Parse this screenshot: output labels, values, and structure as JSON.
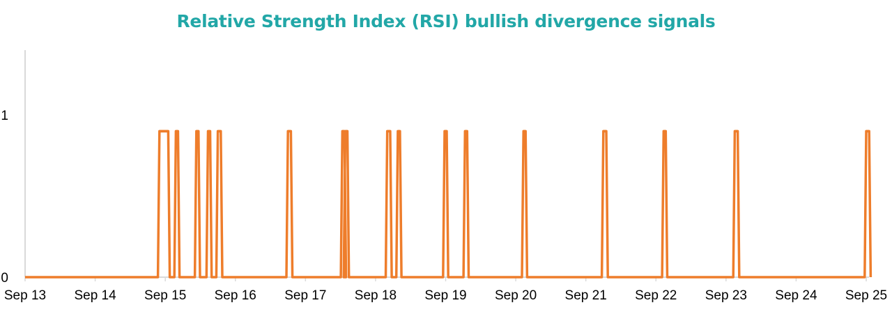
{
  "title": "Relative Strength Index (RSI) bullish divergence signals",
  "colors": {
    "title": "#22A7A7",
    "series": "#EE7D2B",
    "axis": "#D9D9D9",
    "text": "#000000"
  },
  "chart_data": {
    "type": "line",
    "title": "Relative Strength Index (RSI) bullish divergence signals",
    "xlabel": "",
    "ylabel": "",
    "x_tick_labels": [
      "Sep 13",
      "Sep 14",
      "Sep 15",
      "Sep 16",
      "Sep 17",
      "Sep 18",
      "Sep 19",
      "Sep 20",
      "Sep 21",
      "Sep 22",
      "Sep 23",
      "Sep 24",
      "Sep 25"
    ],
    "y_tick_labels": [
      "0",
      "1"
    ],
    "ylim": [
      0,
      1.4
    ],
    "xlim": [
      "Sep 13",
      "Sep 25"
    ],
    "grid": false,
    "legend": "none",
    "series": [
      {
        "signal_level": 0.9,
        "baseline": 0,
        "signals": [
          {
            "start": "Sep 14 22:00",
            "end": "Sep 15 01:00"
          },
          {
            "start": "Sep 15 04:00",
            "end": "Sep 15 04:00"
          },
          {
            "start": "Sep 15 11:00",
            "end": "Sep 15 11:00"
          },
          {
            "start": "Sep 15 15:00",
            "end": "Sep 15 15:00"
          },
          {
            "start": "Sep 15 18:00",
            "end": "Sep 15 19:00"
          },
          {
            "start": "Sep 16 18:00",
            "end": "Sep 16 19:00"
          },
          {
            "start": "Sep 17 13:00",
            "end": "Sep 17 13:00"
          },
          {
            "start": "Sep 17 14:00",
            "end": "Sep 17 14:00"
          },
          {
            "start": "Sep 18 04:00",
            "end": "Sep 18 05:00"
          },
          {
            "start": "Sep 18 08:00",
            "end": "Sep 18 08:00"
          },
          {
            "start": "Sep 19 00:00",
            "end": "Sep 19 00:00"
          },
          {
            "start": "Sep 19 07:00",
            "end": "Sep 19 07:00"
          },
          {
            "start": "Sep 20 03:00",
            "end": "Sep 20 03:00"
          },
          {
            "start": "Sep 21 06:00",
            "end": "Sep 21 07:00"
          },
          {
            "start": "Sep 22 03:00",
            "end": "Sep 22 03:00"
          },
          {
            "start": "Sep 23 03:00",
            "end": "Sep 23 04:00"
          },
          {
            "start": "Sep 25 00:00",
            "end": "Sep 25 01:00"
          }
        ]
      }
    ]
  }
}
